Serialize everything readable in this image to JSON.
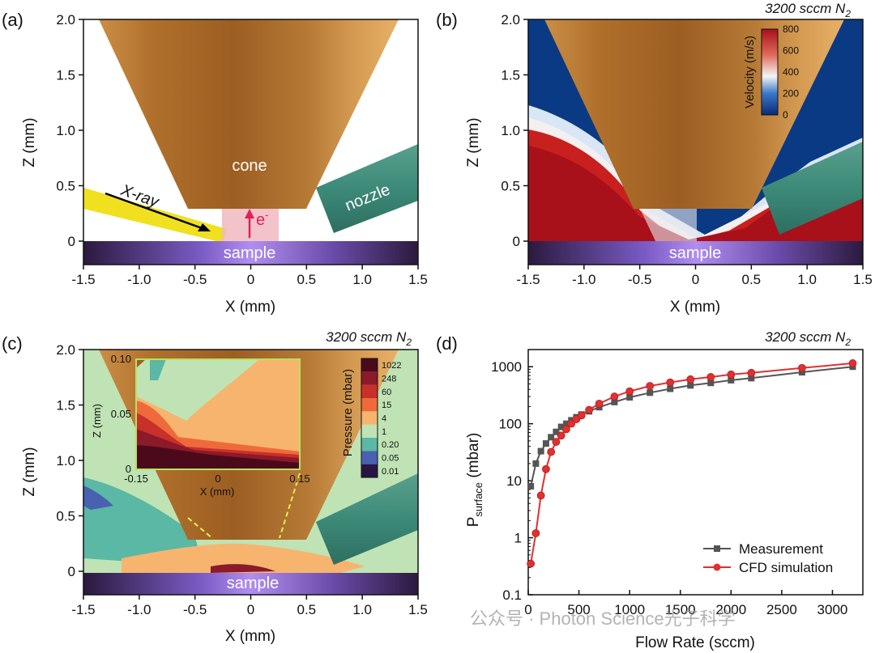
{
  "panels": {
    "a": {
      "label": "(a)",
      "cone_label": "cone",
      "nozzle_label": "nozzle",
      "sample_label": "sample",
      "xray_label": "X-ray",
      "electron_label": "e",
      "electron_sup": "-",
      "xlabel": "X (mm)",
      "ylabel": "Z (mm)",
      "xticks": [
        "-1.5",
        "-1.0",
        "-0.5",
        "0",
        "0.5",
        "1.0",
        "1.5"
      ],
      "yticks": [
        "0",
        "0.5",
        "1.0",
        "1.5",
        "2.0"
      ]
    },
    "b": {
      "label": "(b)",
      "condition": "3200 sccm N",
      "condition_sub": "2",
      "sample_label": "sample",
      "xlabel": "X (mm)",
      "ylabel": "Z (mm)",
      "xticks": [
        "-1.5",
        "-1.0",
        "-0.5",
        "0",
        "0.5",
        "1.0",
        "1.5"
      ],
      "yticks": [
        "0",
        "0.5",
        "1.0",
        "1.5",
        "2.0"
      ],
      "colorbar": {
        "label": "Velocity (m/s)",
        "ticks": [
          "0",
          "200",
          "400",
          "600",
          "800"
        ]
      }
    },
    "c": {
      "label": "(c)",
      "condition": "3200 sccm N",
      "condition_sub": "2",
      "sample_label": "sample",
      "xlabel": "X (mm)",
      "ylabel": "Z (mm)",
      "xticks": [
        "-1.5",
        "-1.0",
        "-0.5",
        "0",
        "0.5",
        "1.0",
        "1.5"
      ],
      "yticks": [
        "0",
        "0.5",
        "1.0",
        "1.5",
        "2.0"
      ],
      "inset": {
        "xlabel": "X (mm)",
        "ylabel": "Z (mm)",
        "xticks": [
          "-0.15",
          "0",
          "0.15"
        ],
        "yticks": [
          "0",
          "0.05",
          "0.10"
        ]
      },
      "colorbar": {
        "label": "Pressure (mbar)",
        "ticks": [
          "1022",
          "248",
          "60",
          "15",
          "4",
          "1",
          "0.20",
          "0.05",
          "0.01"
        ],
        "colors": [
          "#4a0a1c",
          "#8b1a2b",
          "#c8302a",
          "#ef6a3a",
          "#f7b46e",
          "#bfe3b4",
          "#5ab8a4",
          "#4a60b0",
          "#2a1446"
        ]
      }
    },
    "d": {
      "label": "(d)",
      "condition": "3200 sccm N",
      "condition_sub": "2"
    }
  },
  "chart_data": {
    "type": "line",
    "title": "",
    "xlabel": "Flow Rate (sccm)",
    "ylabel": "P",
    "ylabel_sub": "surface",
    "ylabel_unit": " (mbar)",
    "xlim": [
      0,
      3300
    ],
    "ylim": [
      0.1,
      2000
    ],
    "yscale": "log",
    "xticks": [
      "0",
      "500",
      "1000",
      "1500",
      "2000",
      "2500",
      "3000"
    ],
    "xtick_values": [
      0,
      500,
      1000,
      1500,
      2000,
      2500,
      3000
    ],
    "yticks": [
      "0.1",
      "1",
      "10",
      "100",
      "1000"
    ],
    "ytick_values": [
      0.1,
      1,
      10,
      100,
      1000
    ],
    "legend_position": "bottom-right",
    "series": [
      {
        "name": "Measurement",
        "marker": "square",
        "color": "#555555",
        "x": [
          25,
          75,
          125,
          175,
          225,
          275,
          325,
          375,
          425,
          475,
          525,
          600,
          700,
          850,
          1000,
          1200,
          1400,
          1600,
          1800,
          2000,
          2200,
          2700,
          3200
        ],
        "y": [
          8,
          20,
          33,
          45,
          58,
          72,
          88,
          100,
          115,
          130,
          145,
          165,
          195,
          240,
          290,
          350,
          410,
          470,
          520,
          580,
          630,
          800,
          1000
        ]
      },
      {
        "name": "CFD simulation",
        "marker": "circle",
        "color": "#e03030",
        "x": [
          25,
          75,
          125,
          175,
          225,
          275,
          325,
          375,
          425,
          475,
          525,
          600,
          700,
          850,
          1000,
          1200,
          1400,
          1600,
          1800,
          2000,
          2200,
          2700,
          3200
        ],
        "y": [
          0.35,
          1.2,
          5.5,
          16,
          32,
          48,
          62,
          80,
          100,
          120,
          140,
          175,
          225,
          300,
          370,
          460,
          530,
          600,
          660,
          730,
          780,
          950,
          1150
        ]
      }
    ]
  },
  "watermark": "公众号 · Photon Science光子科学"
}
